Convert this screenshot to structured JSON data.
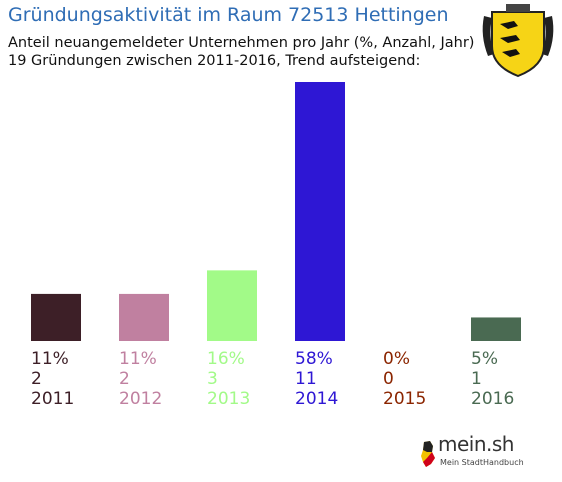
{
  "header": {
    "title": "Gründungsaktivität im Raum 72513 Hettingen",
    "subtitle_line1": "Anteil neuangemeldeter Unternehmen pro Jahr (%, Anzahl, Jahr)",
    "subtitle_line2": "19 Gründungen zwischen 2011-2016, Trend aufsteigend:"
  },
  "colors": {
    "title": "#2f6db5",
    "bars": [
      "#3d1f27",
      "#c080a0",
      "#a2fa88",
      "#2e17d4",
      "#8b2500",
      "#4a6a52"
    ]
  },
  "chart_data": {
    "type": "bar",
    "categories": [
      "2011",
      "2012",
      "2013",
      "2014",
      "2015",
      "2016"
    ],
    "percent_labels": [
      "11%",
      "11%",
      "16%",
      "58%",
      "0%",
      "5%"
    ],
    "count_labels": [
      "2",
      "2",
      "3",
      "11",
      "0",
      "1"
    ],
    "values": [
      2,
      2,
      3,
      11,
      0,
      1
    ],
    "ylim": [
      0,
      11
    ]
  },
  "brand": {
    "name": "mein.sh",
    "tagline": "Mein StadtHandbuch"
  }
}
